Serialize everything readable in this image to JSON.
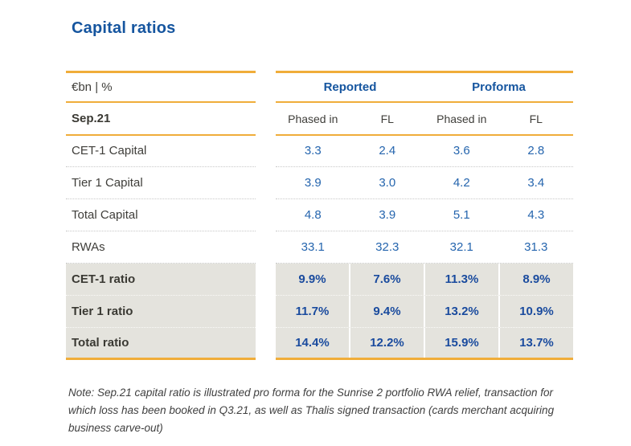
{
  "title": "Capital ratios",
  "table": {
    "unit_header": "€bn | %",
    "date_header": "Sep.21",
    "group_headers": [
      {
        "label": "Reported"
      },
      {
        "label": "Proforma"
      }
    ],
    "sub_headers": [
      "Phased in",
      "FL",
      "Phased in",
      "FL"
    ],
    "rows": [
      {
        "label": "CET-1 Capital",
        "values": [
          "3.3",
          "2.4",
          "3.6",
          "2.8"
        ],
        "highlight": false
      },
      {
        "label": "Tier 1 Capital",
        "values": [
          "3.9",
          "3.0",
          "4.2",
          "3.4"
        ],
        "highlight": false
      },
      {
        "label": "Total Capital",
        "values": [
          "4.8",
          "3.9",
          "5.1",
          "4.3"
        ],
        "highlight": false
      },
      {
        "label": "RWAs",
        "values": [
          "33.1",
          "32.3",
          "32.1",
          "31.3"
        ],
        "highlight": false
      },
      {
        "label": "CET-1 ratio",
        "values": [
          "9.9%",
          "7.6%",
          "11.3%",
          "8.9%"
        ],
        "highlight": true
      },
      {
        "label": "Tier 1 ratio",
        "values": [
          "11.7%",
          "9.4%",
          "13.2%",
          "10.9%"
        ],
        "highlight": true
      },
      {
        "label": "Total ratio",
        "values": [
          "14.4%",
          "12.2%",
          "15.9%",
          "13.7%"
        ],
        "highlight": true
      }
    ]
  },
  "note": "Note: Sep.21 capital ratio is illustrated pro forma for the Sunrise 2 portfolio RWA relief, transaction for which loss has been booked in Q3.21, as well as Thalis signed transaction (cards merchant acquiring business carve-out)",
  "colors": {
    "accent_gold": "#F0AD3A",
    "brand_blue": "#15559F",
    "value_blue": "#2565AE",
    "ratio_value_blue": "#1A4B9E",
    "text_dark": "#3F3E3A",
    "highlight_row_bg": "#E4E3DD"
  }
}
